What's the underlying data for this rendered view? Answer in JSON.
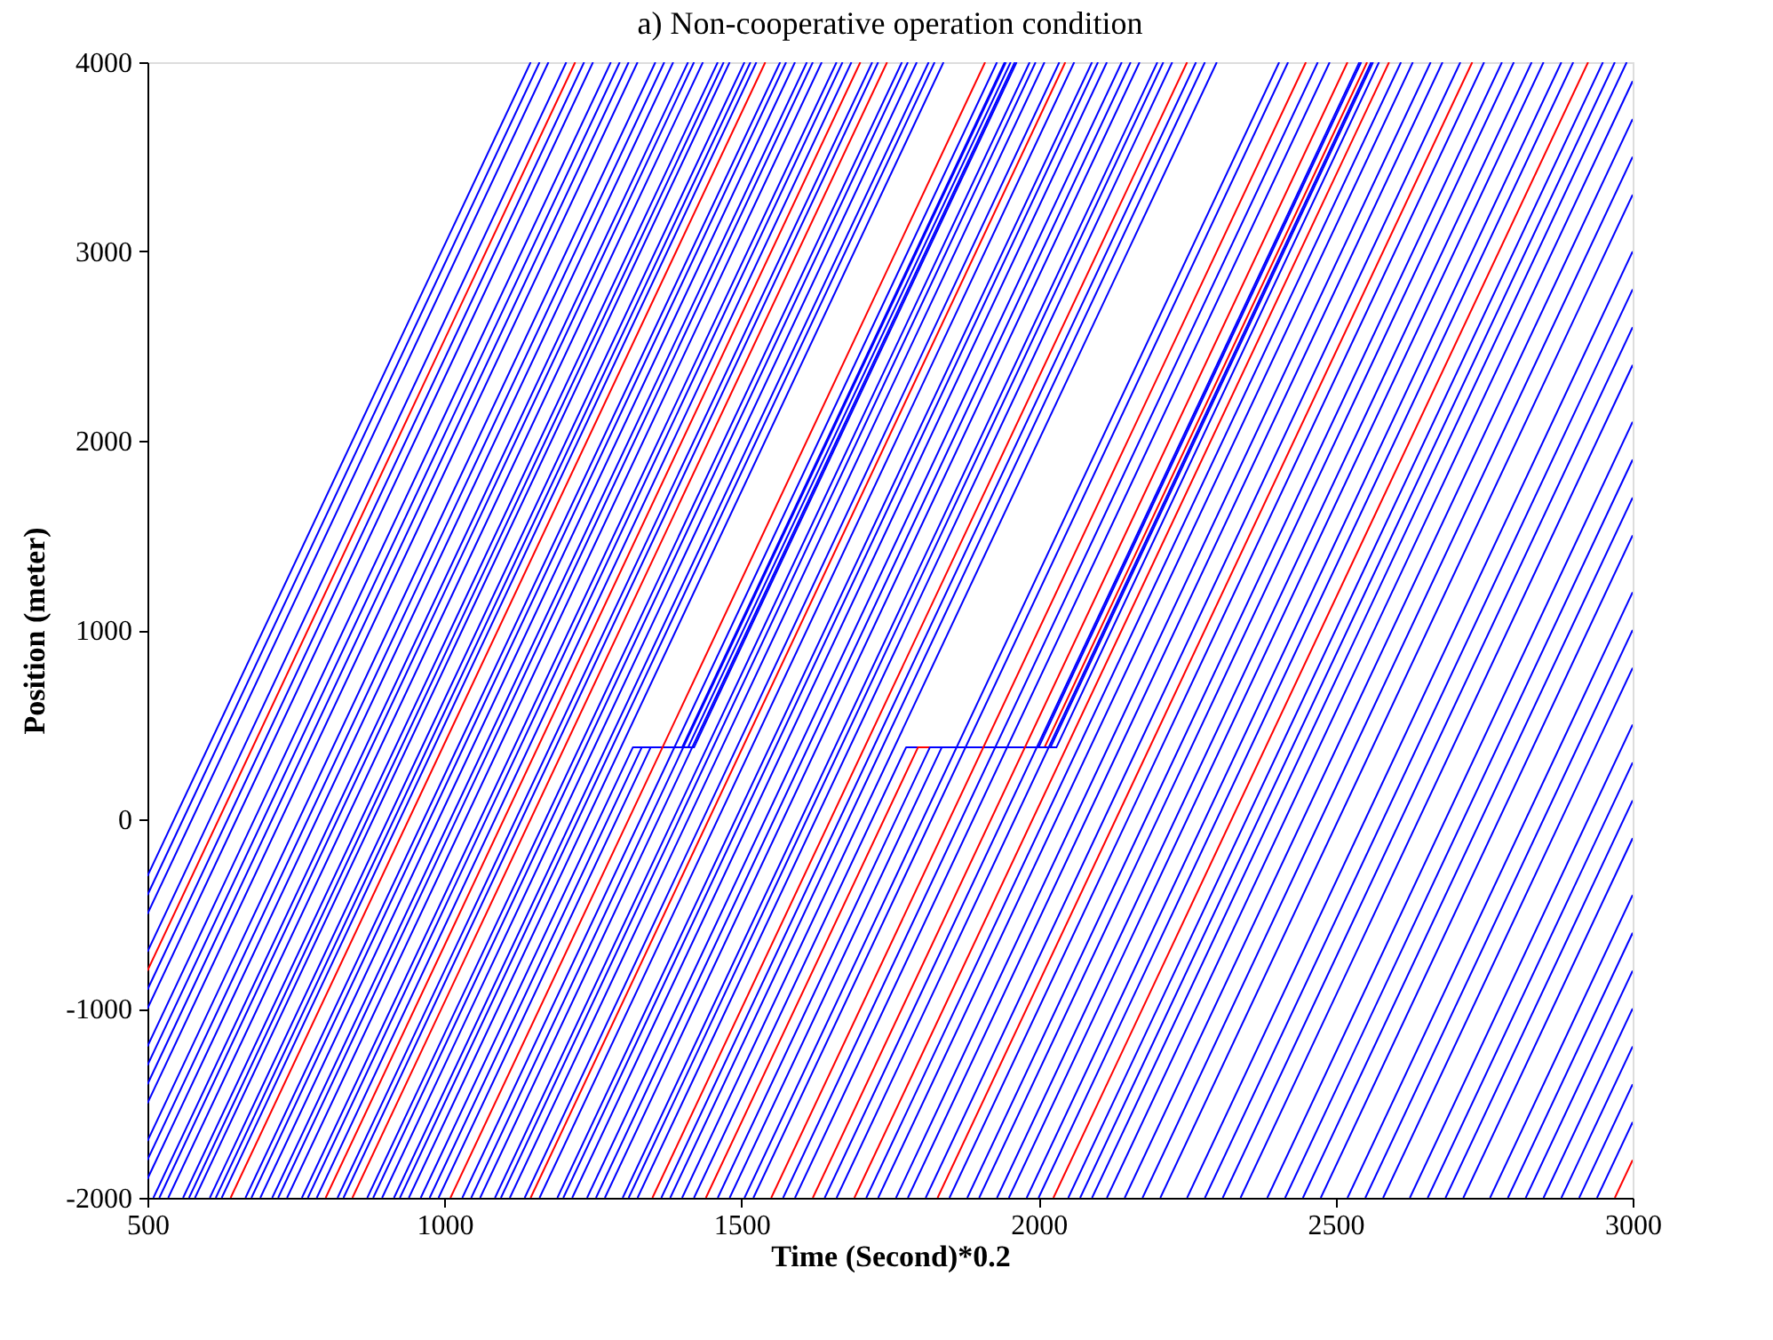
{
  "chart_data": {
    "type": "line",
    "title": "a) Non-cooperative operation condition",
    "xlabel": "Time (Second)*0.2",
    "ylabel": "Position (meter)",
    "xlim": [
      500,
      3000
    ],
    "xticks": [
      500,
      1000,
      1500,
      2000,
      2500,
      3000
    ],
    "ylim": [
      -2000,
      4000
    ],
    "yticks": [
      -2000,
      -1000,
      0,
      1000,
      2000,
      3000,
      4000
    ],
    "grid": false,
    "legend": false,
    "marker": "none",
    "line_style": "solid",
    "series": [
      {
        "color": "#0000ff",
        "x": [
          500,
          1145
        ],
        "values": [
          -300,
          4000
        ]
      },
      {
        "color": "#0000ff",
        "x": [
          500,
          1160
        ],
        "values": [
          -400,
          4000
        ]
      },
      {
        "color": "#0000ff",
        "x": [
          500,
          1175
        ],
        "values": [
          -500,
          4000
        ]
      },
      {
        "color": "#0000ff",
        "x": [
          500,
          1205
        ],
        "values": [
          -700,
          4000
        ]
      },
      {
        "color": "#ff0000",
        "x": [
          500,
          1220
        ],
        "values": [
          -800,
          4000
        ]
      },
      {
        "color": "#0000ff",
        "x": [
          500,
          1235
        ],
        "values": [
          -900,
          4000
        ]
      },
      {
        "color": "#0000ff",
        "x": [
          500,
          1250
        ],
        "values": [
          -1000,
          4000
        ]
      },
      {
        "color": "#0000ff",
        "x": [
          500,
          1280
        ],
        "values": [
          -1200,
          4000
        ]
      },
      {
        "color": "#0000ff",
        "x": [
          500,
          1295
        ],
        "values": [
          -1300,
          4000
        ]
      },
      {
        "color": "#0000ff",
        "x": [
          500,
          1310
        ],
        "values": [
          -1400,
          4000
        ]
      },
      {
        "color": "#0000ff",
        "x": [
          500,
          1325
        ],
        "values": [
          -1500,
          4000
        ]
      },
      {
        "color": "#0000ff",
        "x": [
          500,
          1355
        ],
        "values": [
          -1700,
          4000
        ]
      },
      {
        "color": "#0000ff",
        "x": [
          500,
          1370
        ],
        "values": [
          -1800,
          4000
        ]
      },
      {
        "color": "#0000ff",
        "x": [
          500,
          1385
        ],
        "values": [
          -1900,
          4000
        ]
      },
      {
        "color": "#0000ff",
        "x": [
          510,
          1410
        ],
        "values": [
          -2000,
          4000
        ]
      },
      {
        "color": "#0000ff",
        "x": [
          520,
          1420
        ],
        "values": [
          -2000,
          4000
        ]
      },
      {
        "color": "#0000ff",
        "x": [
          535,
          1435
        ],
        "values": [
          -2000,
          4000
        ]
      },
      {
        "color": "#0000ff",
        "x": [
          560,
          1460
        ],
        "values": [
          -2000,
          4000
        ]
      },
      {
        "color": "#0000ff",
        "x": [
          570,
          1470
        ],
        "values": [
          -2000,
          4000
        ]
      },
      {
        "color": "#0000ff",
        "x": [
          580,
          1480
        ],
        "values": [
          -2000,
          4000
        ]
      },
      {
        "color": "#0000ff",
        "x": [
          605,
          1505
        ],
        "values": [
          -2000,
          4000
        ]
      },
      {
        "color": "#0000ff",
        "x": [
          615,
          1515
        ],
        "values": [
          -2000,
          4000
        ]
      },
      {
        "color": "#0000ff",
        "x": [
          625,
          1525
        ],
        "values": [
          -2000,
          4000
        ]
      },
      {
        "color": "#ff0000",
        "x": [
          640,
          1540
        ],
        "values": [
          -2000,
          4000
        ]
      },
      {
        "color": "#0000ff",
        "x": [
          665,
          1565
        ],
        "values": [
          -2000,
          4000
        ]
      },
      {
        "color": "#0000ff",
        "x": [
          675,
          1575
        ],
        "values": [
          -2000,
          4000
        ]
      },
      {
        "color": "#0000ff",
        "x": [
          690,
          1590
        ],
        "values": [
          -2000,
          4000
        ]
      },
      {
        "color": "#0000ff",
        "x": [
          710,
          1610
        ],
        "values": [
          -2000,
          4000
        ]
      },
      {
        "color": "#0000ff",
        "x": [
          720,
          1620
        ],
        "values": [
          -2000,
          4000
        ]
      },
      {
        "color": "#0000ff",
        "x": [
          735,
          1635
        ],
        "values": [
          -2000,
          4000
        ]
      },
      {
        "color": "#0000ff",
        "x": [
          760,
          1660
        ],
        "values": [
          -2000,
          4000
        ]
      },
      {
        "color": "#0000ff",
        "x": [
          770,
          1670
        ],
        "values": [
          -2000,
          4000
        ]
      },
      {
        "color": "#0000ff",
        "x": [
          785,
          1685
        ],
        "values": [
          -2000,
          4000
        ]
      },
      {
        "color": "#ff0000",
        "x": [
          800,
          1700
        ],
        "values": [
          -2000,
          4000
        ]
      },
      {
        "color": "#0000ff",
        "x": [
          820,
          1720
        ],
        "values": [
          -2000,
          4000
        ]
      },
      {
        "color": "#0000ff",
        "x": [
          830,
          1730
        ],
        "values": [
          -2000,
          4000
        ]
      },
      {
        "color": "#ff0000",
        "x": [
          845,
          1745
        ],
        "values": [
          -2000,
          4000
        ]
      },
      {
        "color": "#0000ff",
        "x": [
          870,
          1770
        ],
        "values": [
          -2000,
          4000
        ]
      },
      {
        "color": "#0000ff",
        "x": [
          880,
          1780
        ],
        "values": [
          -2000,
          4000
        ]
      },
      {
        "color": "#0000ff",
        "x": [
          895,
          1795
        ],
        "values": [
          -2000,
          4000
        ]
      },
      {
        "color": "#0000ff",
        "x": [
          915,
          1815
        ],
        "values": [
          -2000,
          4000
        ]
      },
      {
        "color": "#0000ff",
        "x": [
          925,
          1825
        ],
        "values": [
          -2000,
          4000
        ]
      },
      {
        "color": "#0000ff",
        "x": [
          940,
          1840
        ],
        "values": [
          -2000,
          4000
        ]
      },
      {
        "color": "#0000ff",
        "x": [
          960,
          1317,
          1400,
          1943
        ],
        "values": [
          -2000,
          380,
          380,
          4000
        ]
      },
      {
        "color": "#0000ff",
        "x": [
          975,
          1332,
          1410,
          1953
        ],
        "values": [
          -2000,
          380,
          380,
          4000
        ]
      },
      {
        "color": "#0000ff",
        "x": [
          990,
          1347,
          1420,
          1963
        ],
        "values": [
          -2000,
          380,
          380,
          4000
        ]
      },
      {
        "color": "#ff0000",
        "x": [
          1010,
          1910
        ],
        "values": [
          -2000,
          4000
        ]
      },
      {
        "color": "#0000ff",
        "x": [
          1030,
          1930
        ],
        "values": [
          -2000,
          4000
        ]
      },
      {
        "color": "#0000ff",
        "x": [
          1045,
          1945
        ],
        "values": [
          -2000,
          4000
        ]
      },
      {
        "color": "#0000ff",
        "x": [
          1060,
          1960
        ],
        "values": [
          -2000,
          4000
        ]
      },
      {
        "color": "#0000ff",
        "x": [
          1085,
          1985
        ],
        "values": [
          -2000,
          4000
        ]
      },
      {
        "color": "#0000ff",
        "x": [
          1095,
          1995
        ],
        "values": [
          -2000,
          4000
        ]
      },
      {
        "color": "#0000ff",
        "x": [
          1110,
          2010
        ],
        "values": [
          -2000,
          4000
        ]
      },
      {
        "color": "#0000ff",
        "x": [
          1135,
          2035
        ],
        "values": [
          -2000,
          4000
        ]
      },
      {
        "color": "#ff0000",
        "x": [
          1145,
          2045
        ],
        "values": [
          -2000,
          4000
        ]
      },
      {
        "color": "#0000ff",
        "x": [
          1160,
          2060
        ],
        "values": [
          -2000,
          4000
        ]
      },
      {
        "color": "#0000ff",
        "x": [
          1190,
          2090
        ],
        "values": [
          -2000,
          4000
        ]
      },
      {
        "color": "#0000ff",
        "x": [
          1200,
          2100
        ],
        "values": [
          -2000,
          4000
        ]
      },
      {
        "color": "#0000ff",
        "x": [
          1215,
          2115
        ],
        "values": [
          -2000,
          4000
        ]
      },
      {
        "color": "#0000ff",
        "x": [
          1240,
          2140
        ],
        "values": [
          -2000,
          4000
        ]
      },
      {
        "color": "#0000ff",
        "x": [
          1255,
          2155
        ],
        "values": [
          -2000,
          4000
        ]
      },
      {
        "color": "#0000ff",
        "x": [
          1270,
          2170
        ],
        "values": [
          -2000,
          4000
        ]
      },
      {
        "color": "#0000ff",
        "x": [
          1300,
          2200
        ],
        "values": [
          -2000,
          4000
        ]
      },
      {
        "color": "#0000ff",
        "x": [
          1310,
          2210
        ],
        "values": [
          -2000,
          4000
        ]
      },
      {
        "color": "#0000ff",
        "x": [
          1325,
          2225
        ],
        "values": [
          -2000,
          4000
        ]
      },
      {
        "color": "#ff0000",
        "x": [
          1350,
          2250
        ],
        "values": [
          -2000,
          4000
        ]
      },
      {
        "color": "#0000ff",
        "x": [
          1365,
          2265
        ],
        "values": [
          -2000,
          4000
        ]
      },
      {
        "color": "#0000ff",
        "x": [
          1380,
          2280
        ],
        "values": [
          -2000,
          4000
        ]
      },
      {
        "color": "#0000ff",
        "x": [
          1400,
          2300
        ],
        "values": [
          -2000,
          4000
        ]
      },
      {
        "color": "#0000ff",
        "x": [
          1420,
          1777,
          2000,
          2543
        ],
        "values": [
          -2000,
          380,
          380,
          4000
        ]
      },
      {
        "color": "#ff0000",
        "x": [
          1440,
          1797,
          2010,
          2553
        ],
        "values": [
          -2000,
          380,
          380,
          4000
        ]
      },
      {
        "color": "#0000ff",
        "x": [
          1460,
          1817,
          2020,
          2563
        ],
        "values": [
          -2000,
          380,
          380,
          4000
        ]
      },
      {
        "color": "#0000ff",
        "x": [
          1480,
          1837,
          2030,
          2573
        ],
        "values": [
          -2000,
          380,
          380,
          4000
        ]
      },
      {
        "color": "#0000ff",
        "x": [
          1505,
          2405
        ],
        "values": [
          -2000,
          4000
        ]
      },
      {
        "color": "#0000ff",
        "x": [
          1520,
          2420
        ],
        "values": [
          -2000,
          4000
        ]
      },
      {
        "color": "#ff0000",
        "x": [
          1550,
          2450
        ],
        "values": [
          -2000,
          4000
        ]
      },
      {
        "color": "#0000ff",
        "x": [
          1570,
          2470
        ],
        "values": [
          -2000,
          4000
        ]
      },
      {
        "color": "#0000ff",
        "x": [
          1590,
          2490
        ],
        "values": [
          -2000,
          4000
        ]
      },
      {
        "color": "#ff0000",
        "x": [
          1620,
          2520
        ],
        "values": [
          -2000,
          4000
        ]
      },
      {
        "color": "#0000ff",
        "x": [
          1640,
          2540
        ],
        "values": [
          -2000,
          4000
        ]
      },
      {
        "color": "#0000ff",
        "x": [
          1660,
          2560
        ],
        "values": [
          -2000,
          4000
        ]
      },
      {
        "color": "#ff0000",
        "x": [
          1690,
          2590
        ],
        "values": [
          -2000,
          4000
        ]
      },
      {
        "color": "#0000ff",
        "x": [
          1710,
          2610
        ],
        "values": [
          -2000,
          4000
        ]
      },
      {
        "color": "#0000ff",
        "x": [
          1730,
          2630
        ],
        "values": [
          -2000,
          4000
        ]
      },
      {
        "color": "#0000ff",
        "x": [
          1760,
          2660
        ],
        "values": [
          -2000,
          4000
        ]
      },
      {
        "color": "#0000ff",
        "x": [
          1780,
          2680
        ],
        "values": [
          -2000,
          4000
        ]
      },
      {
        "color": "#0000ff",
        "x": [
          1810,
          2710
        ],
        "values": [
          -2000,
          4000
        ]
      },
      {
        "color": "#ff0000",
        "x": [
          1830,
          2730
        ],
        "values": [
          -2000,
          4000
        ]
      },
      {
        "color": "#0000ff",
        "x": [
          1850,
          2750
        ],
        "values": [
          -2000,
          4000
        ]
      },
      {
        "color": "#0000ff",
        "x": [
          1880,
          2780
        ],
        "values": [
          -2000,
          4000
        ]
      },
      {
        "color": "#0000ff",
        "x": [
          1900,
          2800
        ],
        "values": [
          -2000,
          4000
        ]
      },
      {
        "color": "#0000ff",
        "x": [
          1930,
          2830
        ],
        "values": [
          -2000,
          4000
        ]
      },
      {
        "color": "#0000ff",
        "x": [
          1950,
          2850
        ],
        "values": [
          -2000,
          4000
        ]
      },
      {
        "color": "#0000ff",
        "x": [
          1980,
          2880
        ],
        "values": [
          -2000,
          4000
        ]
      },
      {
        "color": "#0000ff",
        "x": [
          2000,
          2900
        ],
        "values": [
          -2000,
          4000
        ]
      },
      {
        "color": "#ff0000",
        "x": [
          2025,
          2925
        ],
        "values": [
          -2000,
          4000
        ]
      },
      {
        "color": "#0000ff",
        "x": [
          2050,
          2950
        ],
        "values": [
          -2000,
          4000
        ]
      },
      {
        "color": "#0000ff",
        "x": [
          2070,
          2970
        ],
        "values": [
          -2000,
          4000
        ]
      },
      {
        "color": "#0000ff",
        "x": [
          2090,
          2990
        ],
        "values": [
          -2000,
          4000
        ]
      },
      {
        "color": "#0000ff",
        "x": [
          2115,
          3000
        ],
        "values": [
          -2000,
          3900
        ]
      },
      {
        "color": "#0000ff",
        "x": [
          2145,
          3000
        ],
        "values": [
          -2000,
          3700
        ]
      },
      {
        "color": "#0000ff",
        "x": [
          2175,
          3000
        ],
        "values": [
          -2000,
          3500
        ]
      },
      {
        "color": "#0000ff",
        "x": [
          2205,
          3000
        ],
        "values": [
          -2000,
          3300
        ]
      },
      {
        "color": "#0000ff",
        "x": [
          2250,
          3000
        ],
        "values": [
          -2000,
          3000
        ]
      },
      {
        "color": "#0000ff",
        "x": [
          2280,
          3000
        ],
        "values": [
          -2000,
          2800
        ]
      },
      {
        "color": "#0000ff",
        "x": [
          2310,
          3000
        ],
        "values": [
          -2000,
          2600
        ]
      },
      {
        "color": "#0000ff",
        "x": [
          2340,
          3000
        ],
        "values": [
          -2000,
          2400
        ]
      },
      {
        "color": "#0000ff",
        "x": [
          2385,
          3000
        ],
        "values": [
          -2000,
          2100
        ]
      },
      {
        "color": "#0000ff",
        "x": [
          2415,
          3000
        ],
        "values": [
          -2000,
          1900
        ]
      },
      {
        "color": "#0000ff",
        "x": [
          2445,
          3000
        ],
        "values": [
          -2000,
          1700
        ]
      },
      {
        "color": "#0000ff",
        "x": [
          2475,
          3000
        ],
        "values": [
          -2000,
          1500
        ]
      },
      {
        "color": "#0000ff",
        "x": [
          2520,
          3000
        ],
        "values": [
          -2000,
          1200
        ]
      },
      {
        "color": "#0000ff",
        "x": [
          2550,
          3000
        ],
        "values": [
          -2000,
          1000
        ]
      },
      {
        "color": "#0000ff",
        "x": [
          2580,
          3000
        ],
        "values": [
          -2000,
          800
        ]
      },
      {
        "color": "#0000ff",
        "x": [
          2625,
          3000
        ],
        "values": [
          -2000,
          500
        ]
      },
      {
        "color": "#0000ff",
        "x": [
          2655,
          3000
        ],
        "values": [
          -2000,
          300
        ]
      },
      {
        "color": "#0000ff",
        "x": [
          2685,
          3000
        ],
        "values": [
          -2000,
          100
        ]
      },
      {
        "color": "#0000ff",
        "x": [
          2715,
          3000
        ],
        "values": [
          -2000,
          -100
        ]
      },
      {
        "color": "#0000ff",
        "x": [
          2760,
          3000
        ],
        "values": [
          -2000,
          -400
        ]
      },
      {
        "color": "#0000ff",
        "x": [
          2790,
          3000
        ],
        "values": [
          -2000,
          -600
        ]
      },
      {
        "color": "#0000ff",
        "x": [
          2820,
          3000
        ],
        "values": [
          -2000,
          -800
        ]
      },
      {
        "color": "#0000ff",
        "x": [
          2850,
          3000
        ],
        "values": [
          -2000,
          -1000
        ]
      },
      {
        "color": "#0000ff",
        "x": [
          2880,
          3000
        ],
        "values": [
          -2000,
          -1200
        ]
      },
      {
        "color": "#0000ff",
        "x": [
          2910,
          3000
        ],
        "values": [
          -2000,
          -1400
        ]
      },
      {
        "color": "#0000ff",
        "x": [
          2940,
          3000
        ],
        "values": [
          -2000,
          -1600
        ]
      },
      {
        "color": "#ff0000",
        "x": [
          2970,
          3000
        ],
        "values": [
          -2000,
          -1800
        ]
      }
    ]
  }
}
